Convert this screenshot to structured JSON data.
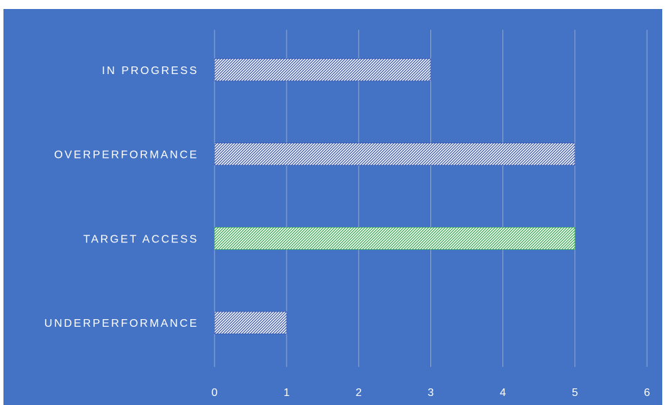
{
  "chart_data": {
    "type": "bar",
    "orientation": "horizontal",
    "categories": [
      "IN PROGRESS",
      "OVERPERFORMANCE",
      "TARGET ACCESS",
      "UNDERPERFORMANCE"
    ],
    "values": [
      3,
      5,
      5,
      1
    ],
    "bar_colors": [
      "#2f4fa8",
      "#2f4fa8",
      "#2ea84a",
      "#2f4fa8"
    ],
    "bar_pattern": "diagonal-hatch",
    "xlim": [
      0,
      6
    ],
    "x_ticks": [
      "0",
      "1",
      "2",
      "3",
      "4",
      "5",
      "6"
    ],
    "grid": "vertical",
    "legend": "none",
    "title": "",
    "xlabel": "",
    "ylabel": ""
  },
  "theme": {
    "background": "#4472c4",
    "bar_fill_base": "#ffffff",
    "gridline": "#8faadc",
    "text": "#ffffff"
  }
}
